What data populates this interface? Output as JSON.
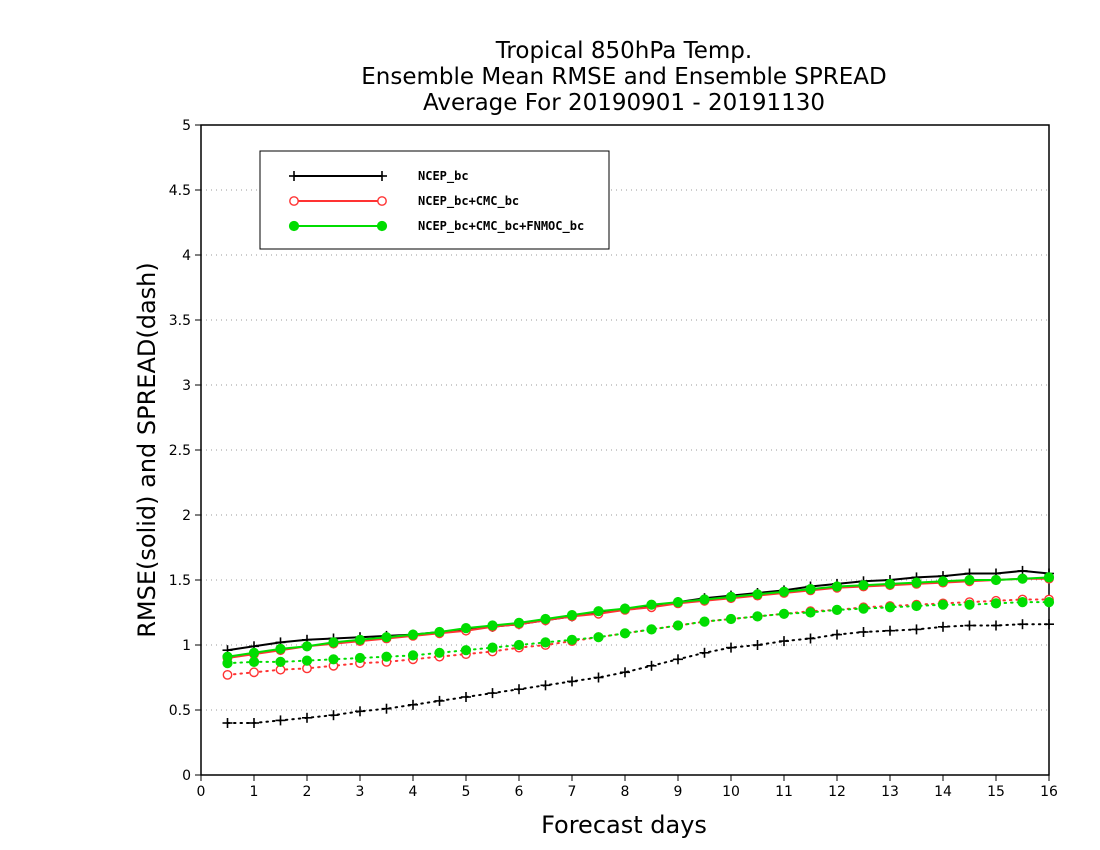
{
  "chart_data": {
    "type": "line",
    "title": [
      "Tropical 850hPa Temp.",
      "Ensemble Mean RMSE and Ensemble SPREAD",
      "Average For 20190901 - 20191130"
    ],
    "xlabel": "Forecast days",
    "ylabel": "RMSE(solid) and SPREAD(dash)",
    "xlim": [
      0,
      16
    ],
    "ylim": [
      0,
      5
    ],
    "xticks": [
      "0",
      "1",
      "2",
      "3",
      "4",
      "5",
      "6",
      "7",
      "8",
      "9",
      "10",
      "11",
      "12",
      "13",
      "14",
      "15",
      "16"
    ],
    "yticks": [
      "0",
      "0.5",
      "1",
      "1.5",
      "2",
      "2.5",
      "3",
      "3.5",
      "4",
      "4.5",
      "5"
    ],
    "grid": "horizontal-dotted",
    "legend_position": "top-left",
    "x": [
      0.5,
      1,
      1.5,
      2,
      2.5,
      3,
      3.5,
      4,
      4.5,
      5,
      5.5,
      6,
      6.5,
      7,
      7.5,
      8,
      8.5,
      9,
      9.5,
      10,
      10.5,
      11,
      11.5,
      12,
      12.5,
      13,
      13.5,
      14,
      14.5,
      15,
      15.5,
      16
    ],
    "series": [
      {
        "name": "NCEP_bc",
        "color": "#000000",
        "marker": "plus",
        "rmse": [
          0.96,
          0.99,
          1.02,
          1.04,
          1.05,
          1.06,
          1.07,
          1.08,
          1.1,
          1.12,
          1.14,
          1.16,
          1.19,
          1.22,
          1.25,
          1.28,
          1.3,
          1.33,
          1.36,
          1.38,
          1.4,
          1.42,
          1.45,
          1.47,
          1.49,
          1.5,
          1.52,
          1.53,
          1.55,
          1.55,
          1.57,
          1.55
        ],
        "spread": [
          0.4,
          0.4,
          0.42,
          0.44,
          0.46,
          0.49,
          0.51,
          0.54,
          0.57,
          0.6,
          0.63,
          0.66,
          0.69,
          0.72,
          0.75,
          0.79,
          0.84,
          0.89,
          0.94,
          0.98,
          1.0,
          1.03,
          1.05,
          1.08,
          1.1,
          1.11,
          1.12,
          1.14,
          1.15,
          1.15,
          1.16,
          1.16
        ]
      },
      {
        "name": "NCEP_bc+CMC_bc",
        "color": "#ff3333",
        "marker": "open-circle",
        "rmse": [
          0.9,
          0.93,
          0.96,
          0.99,
          1.01,
          1.03,
          1.05,
          1.07,
          1.09,
          1.11,
          1.14,
          1.16,
          1.19,
          1.22,
          1.24,
          1.27,
          1.29,
          1.32,
          1.34,
          1.36,
          1.38,
          1.4,
          1.42,
          1.44,
          1.45,
          1.46,
          1.47,
          1.48,
          1.49,
          1.5,
          1.51,
          1.51
        ],
        "spread": [
          0.77,
          0.79,
          0.81,
          0.82,
          0.84,
          0.86,
          0.87,
          0.89,
          0.91,
          0.93,
          0.95,
          0.98,
          1.0,
          1.03,
          1.06,
          1.09,
          1.12,
          1.15,
          1.18,
          1.2,
          1.22,
          1.24,
          1.26,
          1.27,
          1.29,
          1.3,
          1.31,
          1.32,
          1.33,
          1.34,
          1.35,
          1.35
        ]
      },
      {
        "name": "NCEP_bc+CMC_bc+FNMOC_bc",
        "color": "#00dd00",
        "marker": "filled-circle",
        "rmse": [
          0.91,
          0.94,
          0.97,
          0.99,
          1.02,
          1.04,
          1.06,
          1.08,
          1.1,
          1.13,
          1.15,
          1.17,
          1.2,
          1.23,
          1.26,
          1.28,
          1.31,
          1.33,
          1.35,
          1.37,
          1.39,
          1.41,
          1.43,
          1.45,
          1.46,
          1.47,
          1.48,
          1.49,
          1.5,
          1.5,
          1.51,
          1.52
        ],
        "spread": [
          0.86,
          0.87,
          0.87,
          0.88,
          0.89,
          0.9,
          0.91,
          0.92,
          0.94,
          0.96,
          0.98,
          1.0,
          1.02,
          1.04,
          1.06,
          1.09,
          1.12,
          1.15,
          1.18,
          1.2,
          1.22,
          1.24,
          1.25,
          1.27,
          1.28,
          1.29,
          1.3,
          1.31,
          1.31,
          1.32,
          1.33,
          1.33
        ]
      }
    ]
  }
}
